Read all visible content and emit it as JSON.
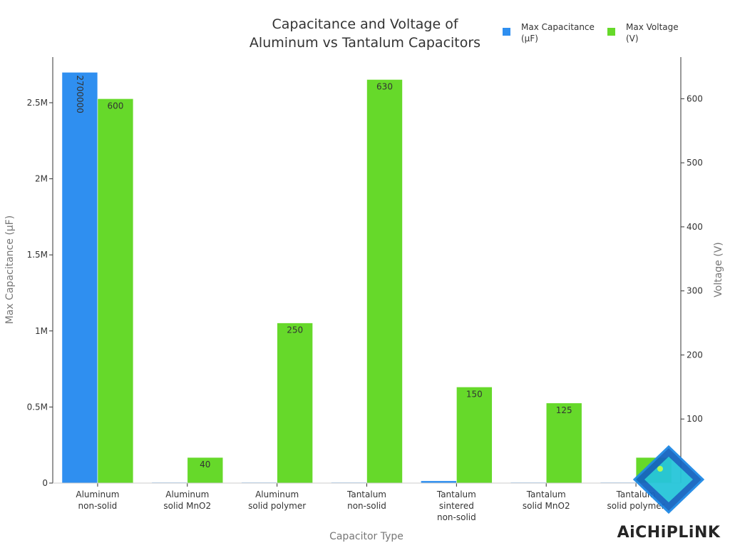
{
  "chart_data": {
    "type": "bar",
    "title": [
      "Capacitance and Voltage of",
      "Aluminum vs Tantalum Capacitors"
    ],
    "xlabel": "Capacitor Type",
    "ylabel_left": "Max Capacitance (µF)",
    "ylabel_right": "Voltage (V)",
    "categories": [
      [
        "Aluminum",
        "non-solid"
      ],
      [
        "Aluminum",
        "solid MnO2"
      ],
      [
        "Aluminum",
        "solid polymer"
      ],
      [
        "Tantalum",
        "non-solid"
      ],
      [
        "Tantalum",
        "sintered",
        "non-solid"
      ],
      [
        "Tantalum",
        "solid MnO2"
      ],
      [
        "Tantalum",
        "solid polymer"
      ]
    ],
    "series": [
      {
        "name": "Max Capacitance (µF)",
        "legend_lines": [
          "Max Capacitance",
          "(µF)"
        ],
        "axis": "left",
        "color": "#2f8ff0",
        "values": [
          2700000,
          1500,
          1500,
          1000,
          15000,
          1500,
          1500
        ],
        "labels": [
          "2700000",
          "",
          "",
          "",
          "",
          "",
          ""
        ]
      },
      {
        "name": "Max Voltage (V)",
        "legend_lines": [
          "Max Voltage",
          "(V)"
        ],
        "axis": "right",
        "color": "#66d92a",
        "values": [
          600,
          40,
          250,
          630,
          150,
          125,
          40
        ],
        "labels": [
          "600",
          "40",
          "250",
          "630",
          "150",
          "125",
          ""
        ]
      }
    ],
    "ylim_left": [
      0,
      2800000
    ],
    "yticks_left": [
      {
        "value": 0,
        "label": "0"
      },
      {
        "value": 500000,
        "label": "0.5M"
      },
      {
        "value": 1000000,
        "label": "1M"
      },
      {
        "value": 1500000,
        "label": "1.5M"
      },
      {
        "value": 2000000,
        "label": "2M"
      },
      {
        "value": 2500000,
        "label": "2.5M"
      }
    ],
    "ylim_right": [
      0,
      665
    ],
    "yticks_right": [
      {
        "value": 100,
        "label": "100"
      },
      {
        "value": 200,
        "label": "200"
      },
      {
        "value": 300,
        "label": "300"
      },
      {
        "value": 400,
        "label": "400"
      },
      {
        "value": 500,
        "label": "500"
      },
      {
        "value": 600,
        "label": "600"
      }
    ],
    "grid": false,
    "legend_position": "top-right"
  },
  "watermark": {
    "text": "AiCHiPLiNK"
  }
}
